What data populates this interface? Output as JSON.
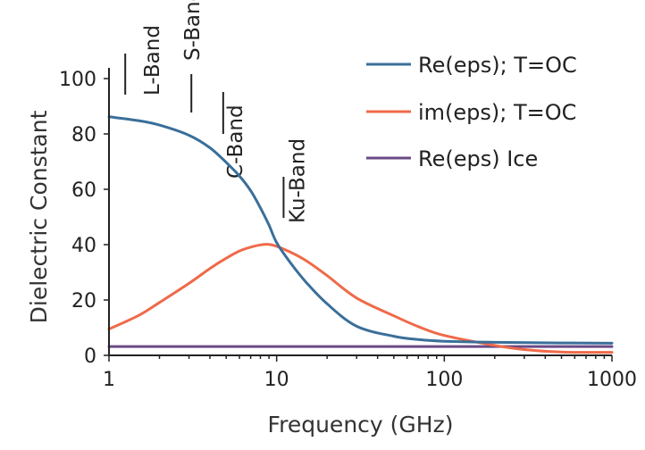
{
  "chart_data": {
    "type": "line",
    "title": "",
    "xlabel": "Frequency (GHz)",
    "ylabel": "Dielectric Constant",
    "x_scale": "log",
    "xlim": [
      1,
      1000
    ],
    "ylim": [
      0,
      100
    ],
    "x_ticks": [
      1,
      10,
      100,
      1000
    ],
    "x_tick_labels": [
      "1",
      "10",
      "100",
      "1000"
    ],
    "y_ticks": [
      0,
      20,
      40,
      60,
      80,
      100
    ],
    "y_tick_labels": [
      "0",
      "20",
      "40",
      "60",
      "80",
      "100"
    ],
    "grid": false,
    "legend_position": "top-right",
    "series": [
      {
        "name": "Re(eps); T=OC",
        "color": "#3a6f9a",
        "x": [
          1,
          1.5,
          2,
          3,
          4,
          5,
          6,
          7,
          8,
          9,
          10,
          12,
          15,
          20,
          30,
          50,
          70,
          100,
          200,
          500,
          1000
        ],
        "y": [
          86.2,
          84.8,
          83.2,
          79.5,
          75,
          69.7,
          64.8,
          59.5,
          53.3,
          47.1,
          40.7,
          33.7,
          26.4,
          18.6,
          10.5,
          6.9,
          5.7,
          5.1,
          4.7,
          4.5,
          4.4
        ]
      },
      {
        "name": "im(eps); T=OC",
        "color": "#ef6a4a",
        "x": [
          1,
          1.5,
          2,
          3,
          4,
          5,
          6,
          7,
          8,
          9,
          10,
          12,
          15,
          20,
          30,
          50,
          70,
          100,
          200,
          300,
          500,
          1000
        ],
        "y": [
          9.5,
          14.4,
          19.1,
          26,
          31.4,
          35.1,
          37.7,
          39.1,
          39.9,
          40.1,
          39.4,
          37.4,
          34.2,
          28.8,
          20.7,
          14.3,
          10.4,
          7.2,
          3.6,
          2.1,
          1.2,
          1.1
        ]
      },
      {
        "name": "Re(eps) Ice",
        "color": "#6a4a85",
        "x": [
          1,
          1000
        ],
        "y": [
          3.2,
          3.2
        ]
      }
    ],
    "annotations": [
      {
        "label": "L-Band",
        "x": 1.25
      },
      {
        "label": "S-Band",
        "x": 3.1
      },
      {
        "label": "C-Band",
        "x": 4.8
      },
      {
        "label": "Ku-Band",
        "x": 11
      }
    ]
  }
}
